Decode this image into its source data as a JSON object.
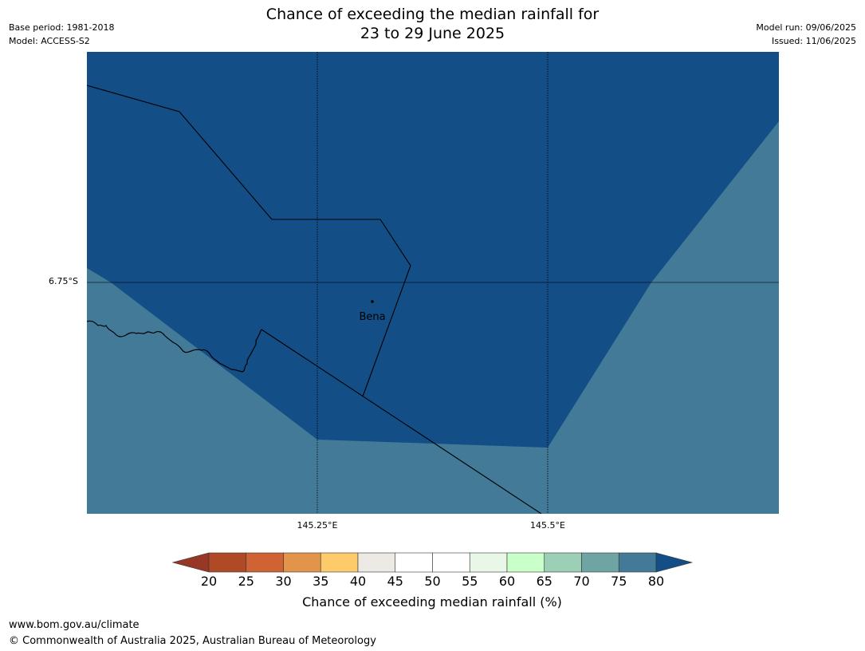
{
  "header": {
    "title_line1": "Chance of exceeding the median rainfall for",
    "title_line2": "23 to 29 June 2025",
    "base_period": "Base period: 1981-2018",
    "model": "Model: ACCESS-S2",
    "model_run": "Model run: 09/06/2025",
    "issued": "Issued: 11/06/2025"
  },
  "map": {
    "place_label": "Bena",
    "lat_label": "6.75°S",
    "lon_labels": [
      "145.25°E",
      "145.5°E"
    ],
    "fill_colors": {
      "above_80": "#134e87",
      "range_75_80": "#427a98"
    }
  },
  "colorbar": {
    "ticks": [
      "20",
      "25",
      "30",
      "35",
      "40",
      "45",
      "50",
      "55",
      "60",
      "65",
      "70",
      "75",
      "80"
    ],
    "label": "Chance of exceeding median rainfall (%)",
    "colors": {
      "below": "#973726",
      "bins": [
        "#b04a26",
        "#cf6333",
        "#e3944b",
        "#fdcb6a",
        "#ede9e4",
        "#ffffff",
        "#ffffff",
        "#e8f7e8",
        "#c9ffc9",
        "#9bd0b6",
        "#6ea4a2",
        "#427a98"
      ],
      "above": "#134e87"
    }
  },
  "footer": {
    "website": "www.bom.gov.au/climate",
    "copyright": "© Commonwealth of Australia 2025, Australian Bureau of Meteorology"
  }
}
